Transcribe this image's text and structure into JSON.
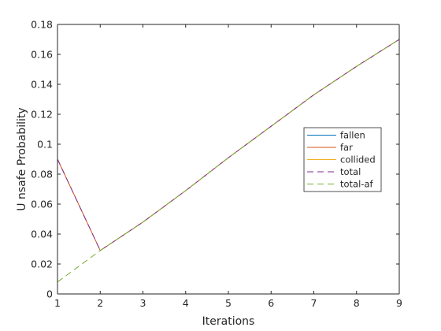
{
  "chart_data": {
    "type": "line",
    "title": "",
    "xlabel": "Iterations",
    "ylabel": "U nsafe Probability",
    "xlim": [
      1,
      9
    ],
    "ylim": [
      0,
      0.18
    ],
    "xticks": [
      1,
      2,
      3,
      4,
      5,
      6,
      7,
      8,
      9
    ],
    "xtick_labels": [
      "1",
      "2",
      "3",
      "4",
      "5",
      "6",
      "7",
      "8",
      "9"
    ],
    "yticks": [
      0,
      0.02,
      0.04,
      0.06,
      0.08,
      0.1,
      0.12,
      0.14,
      0.16,
      0.18
    ],
    "ytick_labels": [
      "0",
      "0.02",
      "0.04",
      "0.06",
      "0.08",
      "0.1",
      "0.12",
      "0.14",
      "0.16",
      "0.18"
    ],
    "grid": false,
    "legend_position": "right",
    "x": [
      1,
      2,
      3,
      4,
      5,
      6,
      7,
      8,
      9
    ],
    "series": [
      {
        "name": "fallen",
        "color": "#0072bd",
        "dash": "solid",
        "values": [
          0,
          0,
          0,
          0,
          0,
          0,
          0,
          0,
          0
        ]
      },
      {
        "name": "far",
        "color": "#d95319",
        "dash": "solid",
        "values": [
          0.09,
          0.029,
          0.048,
          0.069,
          0.091,
          0.112,
          0.133,
          0.152,
          0.17
        ]
      },
      {
        "name": "collided",
        "color": "#edb120",
        "dash": "solid",
        "values": [
          0,
          0,
          0,
          0,
          0,
          0,
          0,
          0,
          0
        ]
      },
      {
        "name": "total",
        "color": "#7e2f8e",
        "dash": "dashed",
        "values": [
          0.09,
          0.029,
          0.048,
          0.069,
          0.091,
          0.112,
          0.133,
          0.152,
          0.17
        ]
      },
      {
        "name": "total-af",
        "color": "#77ac30",
        "dash": "dashed",
        "values": [
          0.008,
          0.029,
          0.048,
          0.069,
          0.091,
          0.112,
          0.133,
          0.152,
          0.17
        ]
      }
    ]
  }
}
